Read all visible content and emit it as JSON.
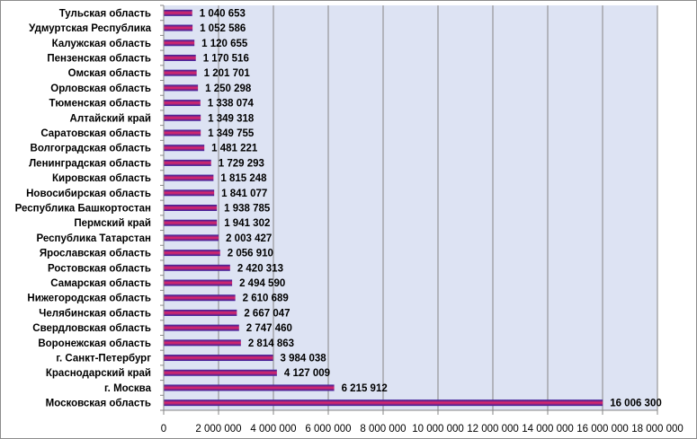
{
  "chart_data": {
    "type": "bar",
    "orientation": "horizontal",
    "title": "",
    "xlabel": "",
    "ylabel": "",
    "xlim": [
      0,
      18000000
    ],
    "grid": true,
    "legend": "none",
    "categories": [
      "Тульская область",
      "Удмуртская Республика",
      "Калужская область",
      "Пензенская область",
      "Омская область",
      "Орловская область",
      "Тюменская область",
      "Алтайский край",
      "Саратовская область",
      "Волгоградская область",
      "Ленинградская область",
      "Кировская область",
      "Новосибирская область",
      "Республика Башкортостан",
      "Пермский край",
      "Республика Татарстан",
      "Ярославская область",
      "Ростовская область",
      "Самарская область",
      "Нижегородская область",
      "Челябинская область",
      "Свердловская область",
      "Воронежская область",
      "г. Санкт-Петербург",
      "Краснодарский край",
      "г. Москва",
      "Московская область"
    ],
    "values": [
      1040653,
      1052586,
      1120655,
      1170516,
      1201701,
      1250298,
      1338074,
      1349318,
      1349755,
      1481221,
      1729293,
      1815248,
      1841077,
      1938785,
      1941302,
      2003427,
      2056910,
      2420313,
      2494590,
      2610689,
      2667047,
      2747460,
      2814863,
      3984038,
      4127009,
      6215912,
      16006300
    ],
    "value_labels": [
      "1 040 653",
      "1 052 586",
      "1 120 655",
      "1 170 516",
      "1 201 701",
      "1 250 298",
      "1 338 074",
      "1 349 318",
      "1 349 755",
      "1 481 221",
      "1 729 293",
      "1 815 248",
      "1 841 077",
      "1 938 785",
      "1 941 302",
      "2 003 427",
      "2 056 910",
      "2 420 313",
      "2 494 590",
      "2 610 689",
      "2 667 047",
      "2 747 460",
      "2 814 863",
      "3 984 038",
      "4 127 009",
      "6 215 912",
      "16 006 300"
    ],
    "tick_values": [
      0,
      2000000,
      4000000,
      6000000,
      8000000,
      10000000,
      12000000,
      14000000,
      16000000,
      18000000
    ],
    "tick_labels": [
      "0",
      "2 000 000",
      "4 000 000",
      "6 000 000",
      "8 000 000",
      "10 000 000",
      "12 000 000",
      "14 000 000",
      "16 000 000",
      "18 000 000"
    ]
  },
  "colors": {
    "plot_background": "#dde3f3",
    "grid_line": "#868686",
    "bar_outer": "#2b1fa0",
    "bar_inner": "#d6266c",
    "axis_line": "#868686"
  }
}
